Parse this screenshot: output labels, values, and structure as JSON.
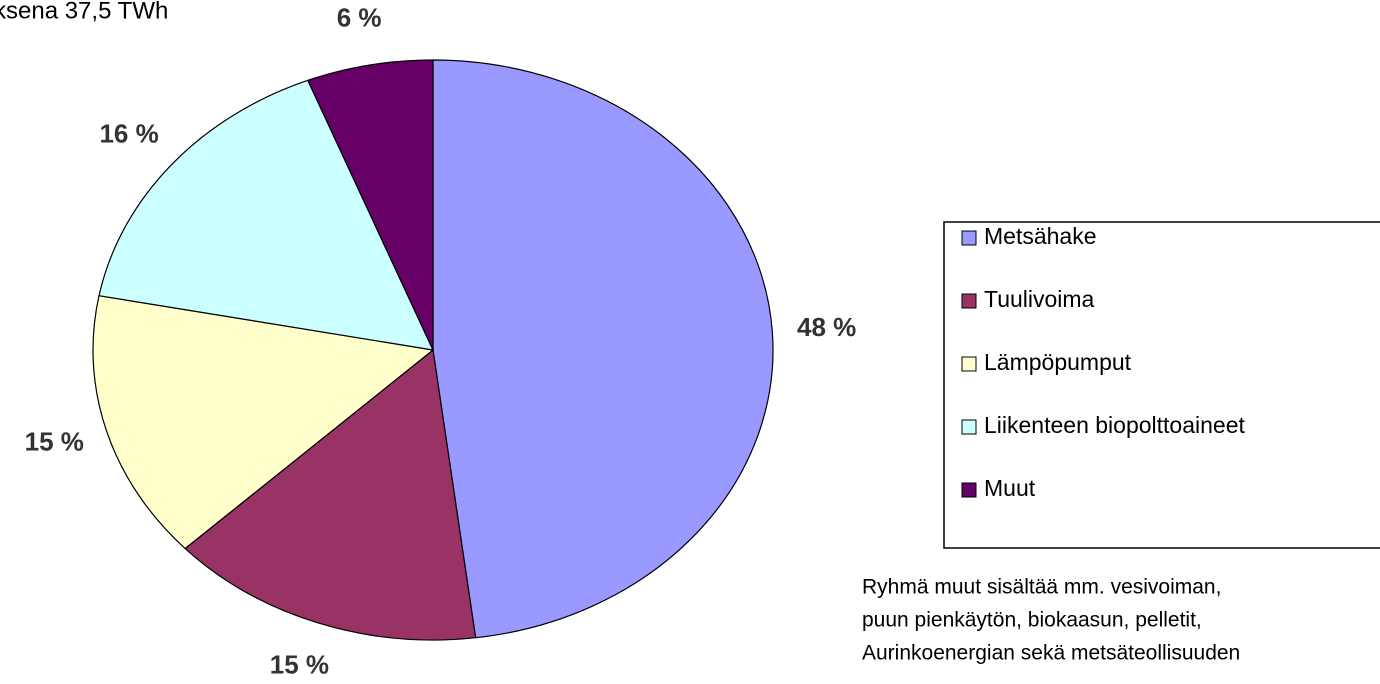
{
  "chart_data": {
    "type": "pie",
    "subtitle": "ksena 37,5 TWh",
    "categories": [
      "Metsähake",
      "Tuulivoima",
      "Lämpöpumput",
      "Liikenteen biopolttoaineet",
      "Muut"
    ],
    "values": [
      48,
      15,
      15,
      16,
      6
    ],
    "value_labels": [
      "48 %",
      "15 %",
      "15 %",
      "16 %",
      "6 %"
    ],
    "colors": [
      "#9999ff",
      "#993366",
      "#ffffcc",
      "#ccffff",
      "#660066"
    ],
    "legend": "right",
    "notes": [
      "Ryhmä muut sisältää mm. vesivoiman,",
      "puun pienkäytön, biokaasun, pelletit,",
      "Aurinkoenergian sekä metsäteollisuuden"
    ]
  }
}
